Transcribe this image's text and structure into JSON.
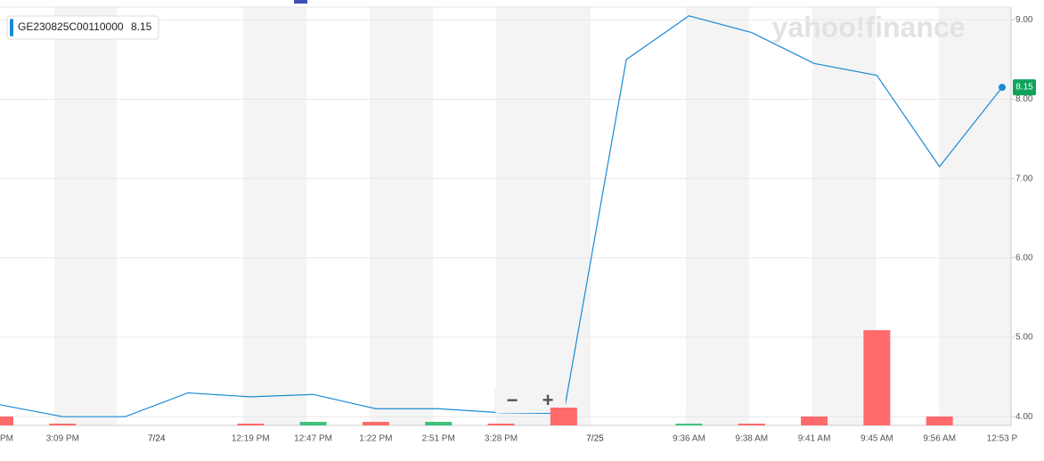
{
  "chart_data": {
    "type": "line",
    "legend_name": "GE230825C00110000",
    "watermark": "yahoo!finance",
    "zoom_controls": [
      "−",
      "+"
    ],
    "categories": [
      "PM",
      "3:09 PM",
      null,
      null,
      "12:19 PM",
      "12:47 PM",
      "1:22 PM",
      "2:51 PM",
      "3:28 PM",
      null,
      null,
      "9:36 AM",
      "9:38 AM",
      "9:41 AM",
      "9:45 AM",
      "9:56 AM",
      "12:53 P"
    ],
    "day_labels": [
      {
        "label": "7/24",
        "index": 3
      },
      {
        "label": "7/25",
        "index": 10
      }
    ],
    "series": [
      {
        "name": "GE230825C00110000",
        "color": "#1a8ad4",
        "values": [
          4.15,
          4.0,
          4.0,
          4.3,
          4.25,
          4.28,
          4.1,
          4.1,
          4.05,
          4.04,
          8.5,
          9.05,
          8.84,
          8.45,
          8.3,
          7.15,
          8.15
        ]
      }
    ],
    "volume": [
      10,
      2,
      0,
      0,
      2,
      4,
      4,
      4,
      2,
      20,
      0,
      2,
      2,
      10,
      107,
      10,
      0
    ],
    "volume_colors": [
      "#ff6b6b",
      "#ff6b6b",
      "#ff6b6b",
      "#ff6b6b",
      "#ff6b6b",
      "#3cc47c",
      "#ff6b6b",
      "#3cc47c",
      "#ff6b6b",
      "#ff6b6b",
      "#3cc47c",
      "#3cc47c",
      "#ff6b6b",
      "#ff6b6b",
      "#ff6b6b",
      "#ff6b6b",
      "#ff6b6b"
    ],
    "last_price_color": "#0fa35a",
    "ylim": [
      3.89,
      9.16
    ],
    "yticks": [
      {
        "value": 4,
        "label": "4.00"
      },
      {
        "value": 5,
        "label": "5.00"
      },
      {
        "value": 6,
        "label": "6.00"
      },
      {
        "value": 7,
        "label": "7.00"
      },
      {
        "value": 8,
        "label": "8.00"
      },
      {
        "value": 9,
        "label": "9.00"
      }
    ],
    "grid": true
  }
}
